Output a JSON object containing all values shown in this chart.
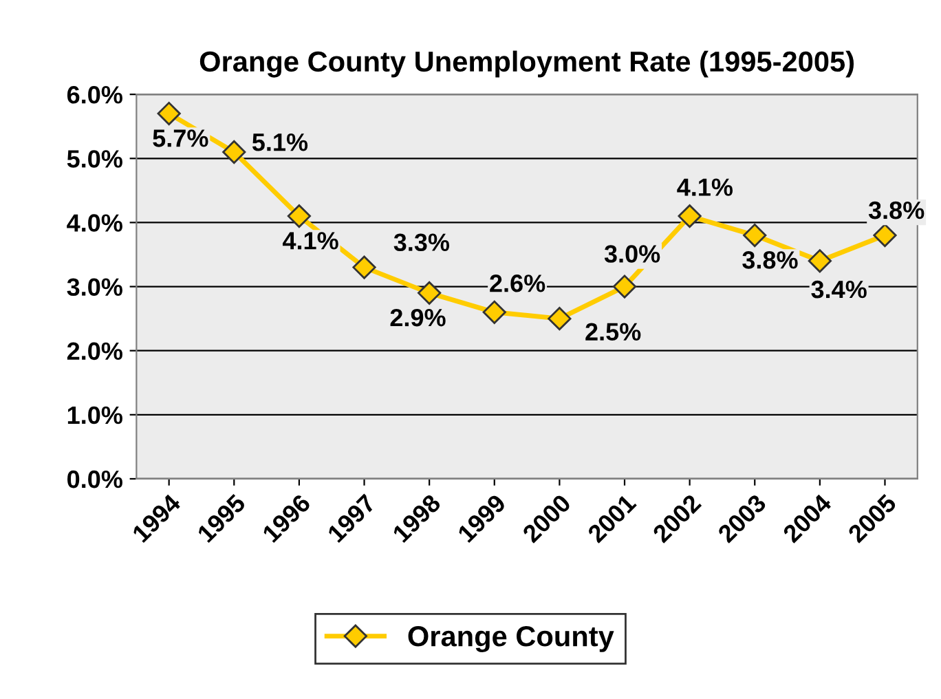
{
  "chart_data": {
    "type": "line",
    "title": "Orange County Unemployment Rate (1995-2005)",
    "categories": [
      "1994",
      "1995",
      "1996",
      "1997",
      "1998",
      "1999",
      "2000",
      "2001",
      "2002",
      "2003",
      "2004",
      "2005"
    ],
    "series": [
      {
        "name": "Orange County",
        "color": "#ffcc00",
        "values": [
          5.7,
          5.1,
          4.1,
          3.3,
          2.9,
          2.6,
          2.5,
          3.0,
          4.1,
          3.8,
          3.4,
          3.8
        ],
        "value_labels": [
          "5.7%",
          "5.1%",
          "4.1%",
          "3.3%",
          "2.9%",
          "2.6%",
          "2.5%",
          "3.0%",
          "4.1%",
          "3.8%",
          "3.4%",
          "3.8%"
        ]
      }
    ],
    "ylim": [
      0,
      6
    ],
    "yticks": [
      {
        "value": 0,
        "label": "0.0%"
      },
      {
        "value": 1,
        "label": "1.0%"
      },
      {
        "value": 2,
        "label": "2.0%"
      },
      {
        "value": 3,
        "label": "3.0%"
      },
      {
        "value": 4,
        "label": "4.0%"
      },
      {
        "value": 5,
        "label": "5.0%"
      },
      {
        "value": 6,
        "label": "6.0%"
      }
    ],
    "grid": "y",
    "legend": "bottom",
    "marker": "diamond",
    "line_style": "solid"
  }
}
